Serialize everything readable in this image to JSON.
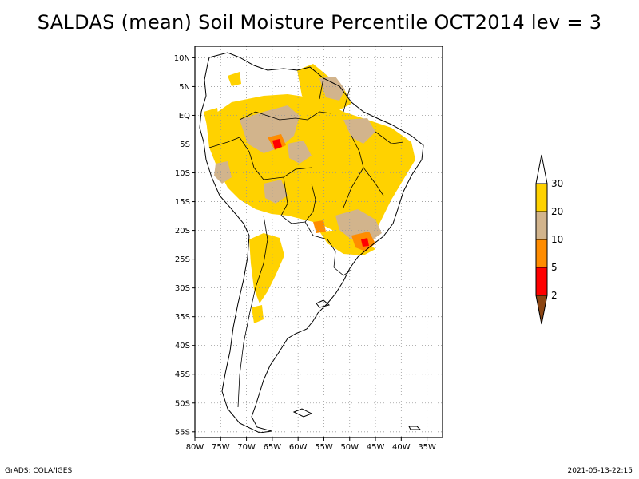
{
  "title": "SALDAS (mean) Soil Moisture Percentile OCT2014 lev = 3",
  "footer": {
    "left": "GrADS: COLA/IGES",
    "right": "2021-05-13-22:15"
  },
  "map": {
    "lon_range": [
      -80,
      -32
    ],
    "lat_range": [
      -56,
      12
    ],
    "lat_ticks": [
      {
        "value": 10,
        "label": "10N"
      },
      {
        "value": 5,
        "label": "5N"
      },
      {
        "value": 0,
        "label": "EQ"
      },
      {
        "value": -5,
        "label": "5S"
      },
      {
        "value": -10,
        "label": "10S"
      },
      {
        "value": -15,
        "label": "15S"
      },
      {
        "value": -20,
        "label": "20S"
      },
      {
        "value": -25,
        "label": "25S"
      },
      {
        "value": -30,
        "label": "30S"
      },
      {
        "value": -35,
        "label": "35S"
      },
      {
        "value": -40,
        "label": "40S"
      },
      {
        "value": -45,
        "label": "45S"
      },
      {
        "value": -50,
        "label": "50S"
      },
      {
        "value": -55,
        "label": "55S"
      }
    ],
    "lon_ticks": [
      {
        "value": -80,
        "label": "80W"
      },
      {
        "value": -75,
        "label": "75W"
      },
      {
        "value": -70,
        "label": "70W"
      },
      {
        "value": -65,
        "label": "65W"
      },
      {
        "value": -60,
        "label": "60W"
      },
      {
        "value": -55,
        "label": "55W"
      },
      {
        "value": -50,
        "label": "50W"
      },
      {
        "value": -45,
        "label": "45W"
      },
      {
        "value": -40,
        "label": "40W"
      },
      {
        "value": -35,
        "label": "35W"
      }
    ]
  },
  "legend": {
    "levels": [
      {
        "label": "30",
        "color": "#ffffff"
      },
      {
        "label": "20",
        "color": "#ffd200"
      },
      {
        "label": "10",
        "color": "#d2b48c"
      },
      {
        "label": "5",
        "color": "#ff8c00"
      },
      {
        "label": "2",
        "color": "#ff0000"
      },
      {
        "label": "",
        "color": "#8b4513"
      }
    ]
  }
}
